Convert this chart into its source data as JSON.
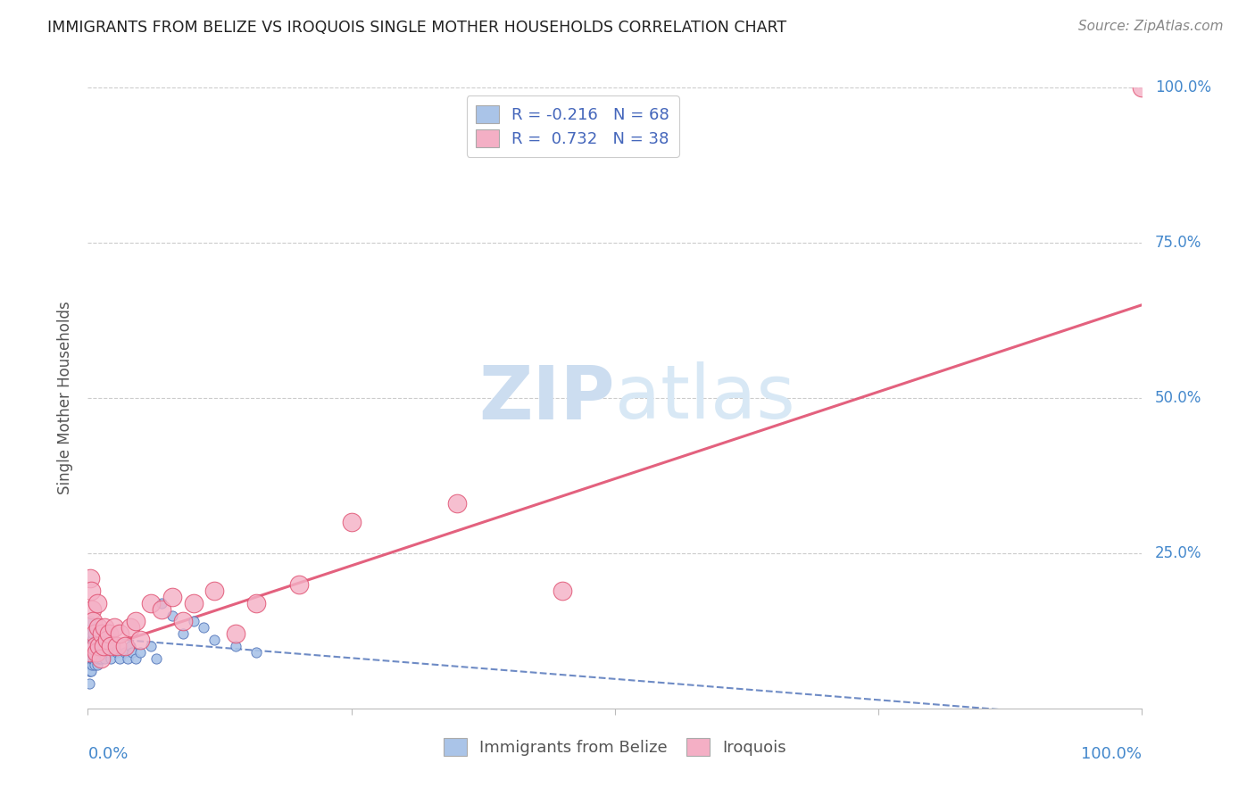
{
  "title": "IMMIGRANTS FROM BELIZE VS IROQUOIS SINGLE MOTHER HOUSEHOLDS CORRELATION CHART",
  "source": "Source: ZipAtlas.com",
  "ylabel": "Single Mother Households",
  "xlim": [
    0,
    1.0
  ],
  "ylim": [
    0,
    1.0
  ],
  "belize_R": -0.216,
  "belize_N": 68,
  "iroquois_R": 0.732,
  "iroquois_N": 38,
  "belize_color": "#aac4e8",
  "iroquois_color": "#f4afc5",
  "belize_edge_color": "#5577bb",
  "iroquois_edge_color": "#e05070",
  "belize_line_color": "#5577bb",
  "iroquois_line_color": "#e05070",
  "legend_text_color": "#4466bb",
  "watermark_color": "#ccddf0",
  "background_color": "#ffffff",
  "grid_color": "#cccccc",
  "tick_label_color": "#4488cc",
  "title_color": "#222222",
  "belize_scatter_x": [
    0.001,
    0.001,
    0.001,
    0.001,
    0.001,
    0.002,
    0.002,
    0.002,
    0.002,
    0.002,
    0.002,
    0.003,
    0.003,
    0.003,
    0.003,
    0.003,
    0.004,
    0.004,
    0.004,
    0.004,
    0.004,
    0.005,
    0.005,
    0.005,
    0.005,
    0.006,
    0.006,
    0.006,
    0.007,
    0.007,
    0.007,
    0.008,
    0.008,
    0.008,
    0.009,
    0.009,
    0.01,
    0.01,
    0.011,
    0.011,
    0.012,
    0.012,
    0.013,
    0.014,
    0.015,
    0.016,
    0.018,
    0.02,
    0.022,
    0.025,
    0.028,
    0.03,
    0.035,
    0.038,
    0.04,
    0.042,
    0.045,
    0.05,
    0.06,
    0.065,
    0.07,
    0.08,
    0.09,
    0.1,
    0.11,
    0.12,
    0.14,
    0.16
  ],
  "belize_scatter_y": [
    0.04,
    0.06,
    0.08,
    0.1,
    0.12,
    0.06,
    0.08,
    0.1,
    0.12,
    0.14,
    0.07,
    0.06,
    0.08,
    0.1,
    0.12,
    0.09,
    0.07,
    0.09,
    0.11,
    0.08,
    0.1,
    0.08,
    0.1,
    0.12,
    0.09,
    0.08,
    0.1,
    0.07,
    0.09,
    0.11,
    0.08,
    0.09,
    0.11,
    0.08,
    0.1,
    0.07,
    0.09,
    0.08,
    0.1,
    0.09,
    0.08,
    0.1,
    0.09,
    0.1,
    0.09,
    0.08,
    0.1,
    0.09,
    0.08,
    0.1,
    0.09,
    0.08,
    0.09,
    0.08,
    0.1,
    0.09,
    0.08,
    0.09,
    0.1,
    0.08,
    0.17,
    0.15,
    0.12,
    0.14,
    0.13,
    0.11,
    0.1,
    0.09
  ],
  "iroquois_scatter_x": [
    0.001,
    0.002,
    0.003,
    0.004,
    0.005,
    0.006,
    0.007,
    0.008,
    0.009,
    0.01,
    0.011,
    0.012,
    0.013,
    0.015,
    0.016,
    0.018,
    0.02,
    0.022,
    0.025,
    0.028,
    0.03,
    0.035,
    0.04,
    0.045,
    0.05,
    0.06,
    0.07,
    0.08,
    0.09,
    0.1,
    0.12,
    0.14,
    0.16,
    0.2,
    0.25,
    0.35,
    0.45,
    1.0
  ],
  "iroquois_scatter_y": [
    0.09,
    0.21,
    0.19,
    0.16,
    0.14,
    0.12,
    0.1,
    0.09,
    0.17,
    0.13,
    0.1,
    0.08,
    0.12,
    0.1,
    0.13,
    0.11,
    0.12,
    0.1,
    0.13,
    0.1,
    0.12,
    0.1,
    0.13,
    0.14,
    0.11,
    0.17,
    0.16,
    0.18,
    0.14,
    0.17,
    0.19,
    0.12,
    0.17,
    0.2,
    0.3,
    0.33,
    0.19,
    1.0
  ],
  "iroquois_line_x0": 0.0,
  "iroquois_line_y0": 0.09,
  "iroquois_line_x1": 1.0,
  "iroquois_line_y1": 0.65,
  "belize_line_x0": 0.0,
  "belize_line_y0": 0.115,
  "belize_line_x1": 1.0,
  "belize_line_y1": -0.02
}
